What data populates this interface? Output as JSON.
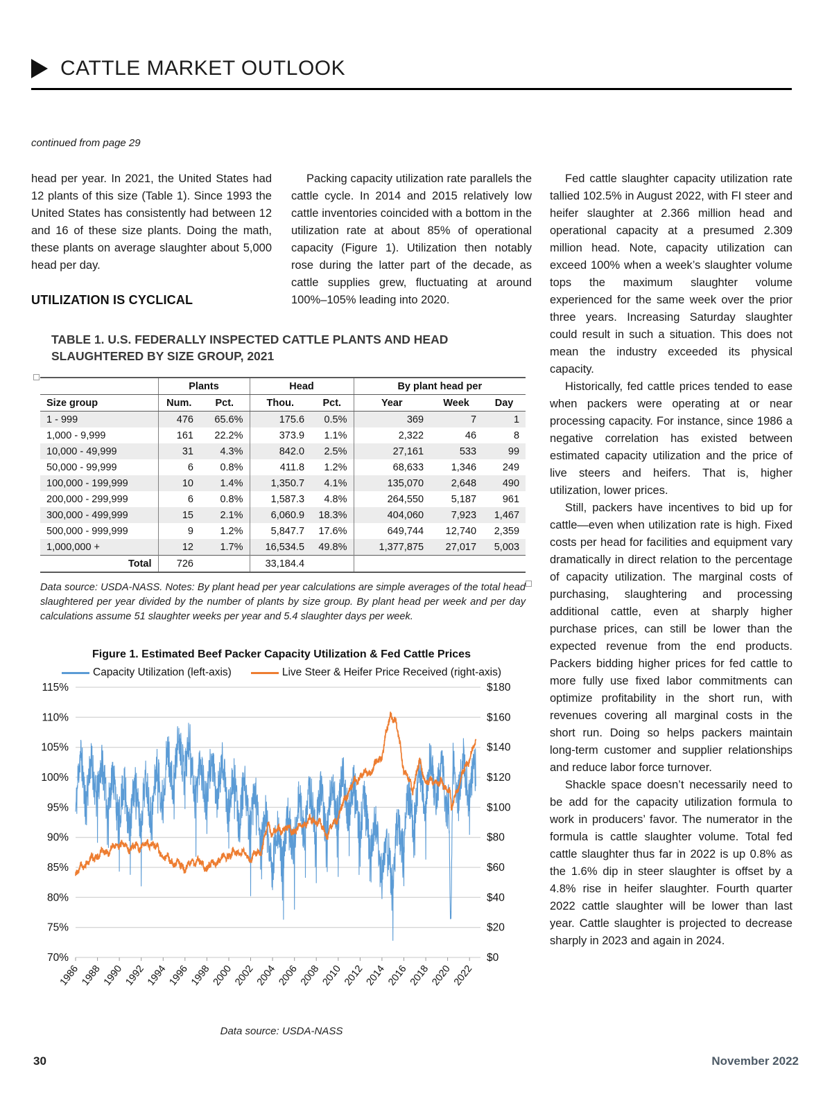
{
  "header": {
    "title": "CATTLE MARKET OUTLOOK"
  },
  "article": {
    "continued_from": "continued from page 29",
    "col1_para": "head per year. In 2021, the United States had 12 plants of this size (Table 1). Since 1993 the United States has consistently had between 12 and 16 of these size plants. Doing the math, these plants on average slaughter about 5,000 head per day.",
    "col1_heading": "UTILIZATION IS CYCLICAL",
    "col2_para": "Packing capacity utilization rate parallels the cattle cycle. In 2014 and 2015 relatively low cattle inventories coincided with a bottom in the utilization rate at about 85% of operational capacity (Figure 1). Utilization then notably rose during the latter part of the decade, as cattle supplies grew, fluctuating at around 100%–105% leading into 2020.",
    "col3_paras": [
      "Fed cattle slaughter capacity utilization rate tallied 102.5% in August 2022, with FI steer and heifer slaughter at 2.366 million head and operational capacity at a presumed 2.309 million head. Note, capacity utilization can exceed 100% when a week’s slaughter volume tops the maximum slaughter volume experienced for the same week over the prior three years. Increasing Saturday slaughter could result in such a situation. This does not mean the industry exceeded its physical capacity.",
      "Historically, fed cattle prices tended to ease when packers were operating at or near processing capacity. For instance, since 1986 a negative correlation has existed between estimated capacity utilization and the price of live steers and heifers. That is, higher utilization, lower prices.",
      "Still, packers have incentives to bid up for cattle—even when utilization rate is high. Fixed costs per head for facilities and equipment vary dramatically in direct relation to the percentage of capacity utilization. The marginal costs of purchasing, slaughtering and processing additional cattle, even at sharply higher purchase prices, can still be lower than the expected revenue from the end products. Packers bidding higher prices for fed cattle to more fully use fixed labor commitments can optimize profitability in the short run, with revenues covering all marginal costs in the short run. Doing so helps packers maintain long-term customer and supplier relationships and reduce labor force turnover.",
      "Shackle space doesn’t necessarily need to be add for the capacity utilization formula to work in producers’ favor. The numerator in the formula is cattle slaughter volume. Total fed cattle slaughter thus far in 2022 is up 0.8% as the 1.6% dip in steer slaughter is offset by a 4.8% rise in heifer slaughter. Fourth quarter 2022 cattle slaughter will be lower than last year. Cattle slaughter is projected to decrease sharply in 2023 and again in 2024."
    ]
  },
  "table": {
    "title": "TABLE 1. U.S. FEDERALLY INSPECTED CATTLE PLANTS AND HEAD SLAUGHTERED BY SIZE GROUP, 2021",
    "group_headers": [
      {
        "label": "",
        "span": 1
      },
      {
        "label": "Plants",
        "span": 2
      },
      {
        "label": "Head",
        "span": 2
      },
      {
        "label": "By plant head per",
        "span": 3
      }
    ],
    "column_headers": [
      "Size group",
      "Num.",
      "Pct.",
      "Thou.",
      "Pct.",
      "Year",
      "Week",
      "Day"
    ],
    "rows": [
      [
        "1 - 999",
        "476",
        "65.6%",
        "175.6",
        "0.5%",
        "369",
        "7",
        "1"
      ],
      [
        "1,000 - 9,999",
        "161",
        "22.2%",
        "373.9",
        "1.1%",
        "2,322",
        "46",
        "8"
      ],
      [
        "10,000 - 49,999",
        "31",
        "4.3%",
        "842.0",
        "2.5%",
        "27,161",
        "533",
        "99"
      ],
      [
        "50,000 - 99,999",
        "6",
        "0.8%",
        "411.8",
        "1.2%",
        "68,633",
        "1,346",
        "249"
      ],
      [
        "100,000 - 199,999",
        "10",
        "1.4%",
        "1,350.7",
        "4.1%",
        "135,070",
        "2,648",
        "490"
      ],
      [
        "200,000 - 299,999",
        "6",
        "0.8%",
        "1,587.3",
        "4.8%",
        "264,550",
        "5,187",
        "961"
      ],
      [
        "300,000 - 499,999",
        "15",
        "2.1%",
        "6,060.9",
        "18.3%",
        "404,060",
        "7,923",
        "1,467"
      ],
      [
        "500,000 - 999,999",
        "9",
        "1.2%",
        "5,847.7",
        "17.6%",
        "649,744",
        "12,740",
        "2,359"
      ],
      [
        "1,000,000 +",
        "12",
        "1.7%",
        "16,534.5",
        "49.8%",
        "1,377,875",
        "27,017",
        "5,003"
      ]
    ],
    "total_row": [
      "Total",
      "726",
      "",
      "33,184.4",
      "",
      "",
      "",
      ""
    ],
    "notes": "Data source: USDA-NASS. Notes: By plant head per year calculations are simple averages of the total head slaughtered per year divided by the number of plants by size group. By plant head per week and per day calculations assume 51 slaughter weeks per year and 5.4 slaughter days per week."
  },
  "chart_data": {
    "type": "line",
    "title": "Figure 1. Estimated Beef Packer Capacity Utilization & Fed Cattle Prices",
    "source": "Data source: USDA-NASS",
    "grid": true,
    "legend_position": "top",
    "x_axis": {
      "range": [
        1986,
        2023
      ],
      "ticks": [
        "1986",
        "1988",
        "1990",
        "1992",
        "1994",
        "1996",
        "1998",
        "2000",
        "2002",
        "2004",
        "2006",
        "2008",
        "2010",
        "2012",
        "2014",
        "2016",
        "2018",
        "2020",
        "2022"
      ]
    },
    "left_axis": {
      "label": "Capacity Utilization",
      "range": [
        70,
        115
      ],
      "ticks": [
        "115%",
        "110%",
        "105%",
        "100%",
        "95%",
        "90%",
        "85%",
        "80%",
        "75%",
        "70%"
      ]
    },
    "right_axis": {
      "label": "Live Steer & Heifer Price Received",
      "range": [
        0,
        180
      ],
      "ticks": [
        "$180",
        "$160",
        "$140",
        "$120",
        "$100",
        "$80",
        "$60",
        "$40",
        "$20",
        "$0"
      ]
    },
    "sampling": "weekly 1986 – mid-2022",
    "series": [
      {
        "name": "Capacity Utilization (left-axis)",
        "axis": "left",
        "color": "#5b9bd5",
        "unit": "%",
        "seasonal": 3.2,
        "noise": 7,
        "anchors": [
          [
            1986,
            97
          ],
          [
            1986.5,
            101
          ],
          [
            1987,
            99
          ],
          [
            1988,
            100
          ],
          [
            1989,
            98
          ],
          [
            1990,
            96
          ],
          [
            1991,
            95
          ],
          [
            1992,
            96
          ],
          [
            1993,
            97
          ],
          [
            1994,
            100
          ],
          [
            1995,
            102
          ],
          [
            1995.9,
            105
          ],
          [
            1997,
            100
          ],
          [
            1998,
            99
          ],
          [
            1999,
            100
          ],
          [
            2000,
            98
          ],
          [
            2001,
            96
          ],
          [
            2002,
            95
          ],
          [
            2003,
            92
          ],
          [
            2004,
            88
          ],
          [
            2005,
            89
          ],
          [
            2006,
            92
          ],
          [
            2007,
            94
          ],
          [
            2008,
            95
          ],
          [
            2009,
            94
          ],
          [
            2010,
            97
          ],
          [
            2011,
            97
          ],
          [
            2012,
            94
          ],
          [
            2013,
            91
          ],
          [
            2014,
            87
          ],
          [
            2015,
            86
          ],
          [
            2016,
            92
          ],
          [
            2017,
            96
          ],
          [
            2018,
            99
          ],
          [
            2019,
            100
          ],
          [
            2020.1,
            98
          ],
          [
            2020.28,
            71
          ],
          [
            2020.5,
            100
          ],
          [
            2021,
            100
          ],
          [
            2022,
            100
          ],
          [
            2022.6,
            99
          ]
        ]
      },
      {
        "name": "Live Steer & Heifer Price Received (right-axis)",
        "axis": "right",
        "color": "#ed7d31",
        "unit": "$/cwt",
        "seasonal": 1.5,
        "noise": 4,
        "anchors": [
          [
            1986,
            56
          ],
          [
            1987,
            63
          ],
          [
            1988,
            68
          ],
          [
            1989,
            71
          ],
          [
            1990,
            76
          ],
          [
            1991,
            73
          ],
          [
            1992,
            74
          ],
          [
            1993,
            76
          ],
          [
            1994,
            68
          ],
          [
            1995,
            63
          ],
          [
            1996,
            60
          ],
          [
            1997,
            65
          ],
          [
            1998,
            60
          ],
          [
            1999,
            64
          ],
          [
            2000,
            68
          ],
          [
            2001,
            71
          ],
          [
            2002,
            66
          ],
          [
            2003,
            72
          ],
          [
            2003.6,
            88
          ],
          [
            2004,
            83
          ],
          [
            2005,
            86
          ],
          [
            2006,
            84
          ],
          [
            2007,
            90
          ],
          [
            2008,
            92
          ],
          [
            2009,
            82
          ],
          [
            2010,
            94
          ],
          [
            2011,
            112
          ],
          [
            2012,
            121
          ],
          [
            2013,
            124
          ],
          [
            2014,
            135
          ],
          [
            2014.8,
            163
          ],
          [
            2015.2,
            158
          ],
          [
            2015.5,
            148
          ],
          [
            2016,
            125
          ],
          [
            2016.8,
            112
          ],
          [
            2017.4,
            130
          ],
          [
            2018,
            117
          ],
          [
            2019,
            117
          ],
          [
            2020.2,
            112
          ],
          [
            2020.35,
            96
          ],
          [
            2020.6,
            107
          ],
          [
            2021,
            115
          ],
          [
            2021.8,
            130
          ],
          [
            2022.3,
            138
          ],
          [
            2022.6,
            144
          ]
        ]
      }
    ]
  },
  "footer": {
    "page_number": "30",
    "issue_date": "November 2022"
  }
}
